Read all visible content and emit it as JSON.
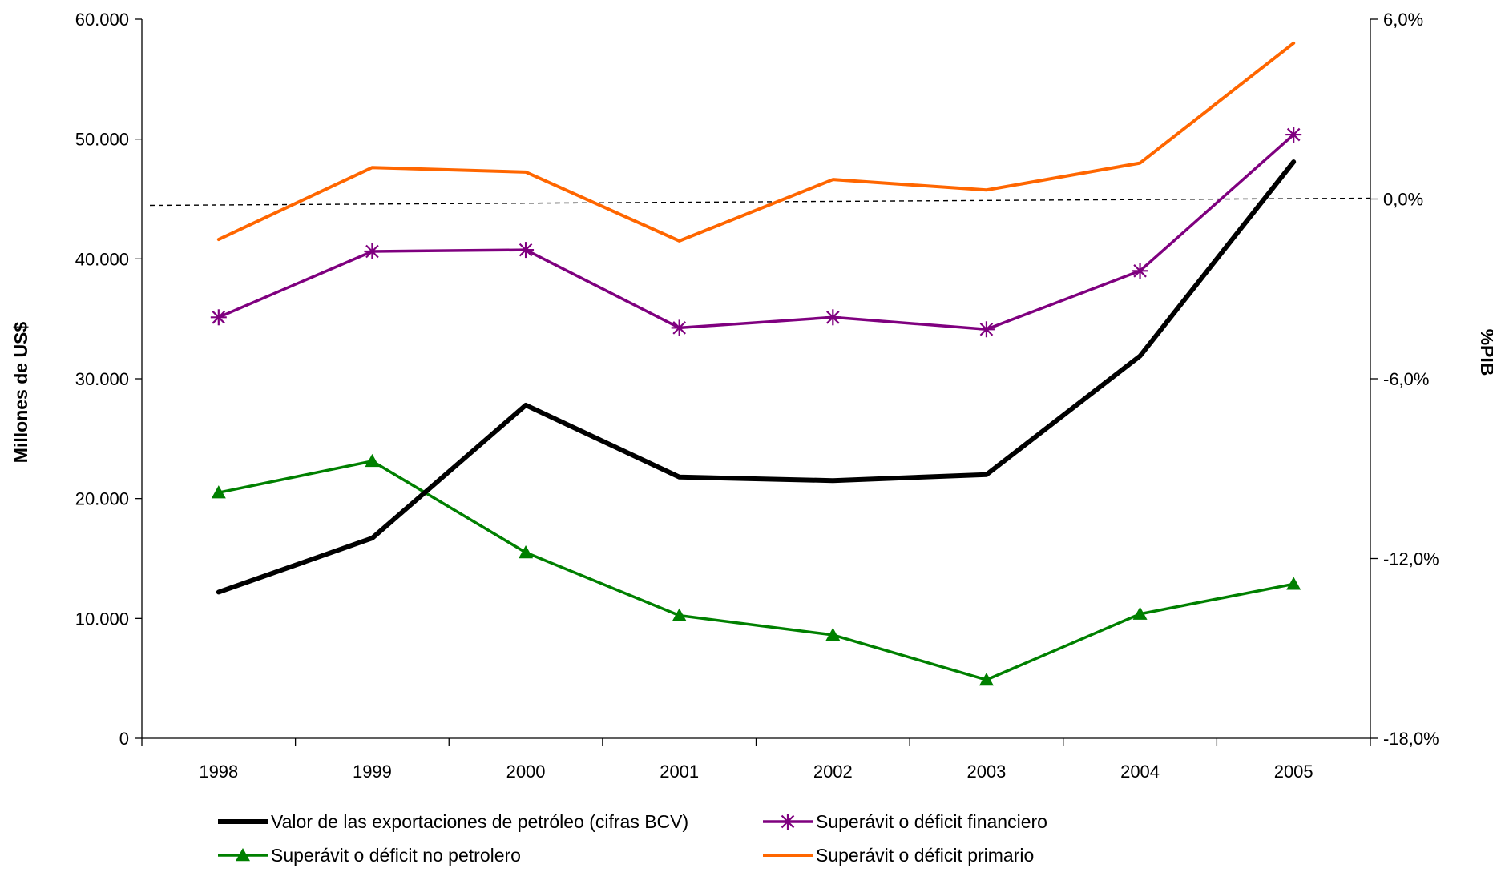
{
  "chart_data": {
    "type": "line",
    "categories": [
      "1998",
      "1999",
      "2000",
      "2001",
      "2002",
      "2003",
      "2004",
      "2005"
    ],
    "ylabel": "Millones de US$",
    "y2label": "%PIB",
    "ylim": [
      0,
      60000
    ],
    "y2lim": [
      -18,
      6
    ],
    "yticks": [
      0,
      10000,
      20000,
      30000,
      40000,
      50000,
      60000
    ],
    "yticklabels": [
      "0",
      "10.000",
      "20.000",
      "30.000",
      "40.000",
      "50.000",
      "60.000"
    ],
    "y2ticks": [
      -18,
      -12,
      -6,
      0,
      6
    ],
    "y2ticklabels": [
      "-18,0%",
      "-12,0%",
      "-6,0%",
      "0,0%",
      "6,0%"
    ],
    "legend_position": "bottom",
    "series": [
      {
        "name": "Valor de las exportaciones de petróleo (cifras BCV)",
        "axis": "left",
        "color": "#000000",
        "marker": "none",
        "values": [
          12200,
          16700,
          27800,
          21800,
          21500,
          22000,
          31900,
          48100
        ]
      },
      {
        "name": "Superávit o déficit financiero",
        "axis": "right",
        "color": "#7F007F",
        "marker": "star",
        "values": [
          -3.95,
          -1.75,
          -1.7,
          -4.3,
          -3.95,
          -4.35,
          -2.4,
          2.15
        ]
      },
      {
        "name": "Superávit o déficit no petrolero",
        "axis": "right",
        "color": "#008000",
        "marker": "triangle",
        "values": [
          -9.8,
          -8.75,
          -11.8,
          -13.9,
          -14.55,
          -16.05,
          -13.85,
          -12.85
        ]
      },
      {
        "name": "Superávit o déficit primario",
        "axis": "right",
        "color": "#FF6600",
        "marker": "none",
        "values": [
          -1.35,
          1.05,
          0.9,
          -1.4,
          0.65,
          0.3,
          1.2,
          5.2
        ]
      }
    ],
    "reference_line": {
      "axis": "right",
      "value": 0,
      "style": "dashed"
    }
  }
}
